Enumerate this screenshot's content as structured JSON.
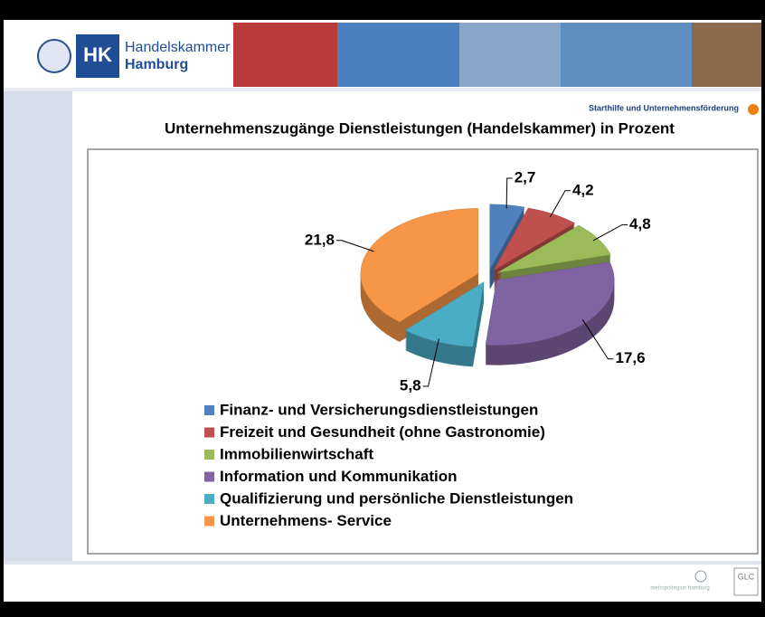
{
  "header": {
    "logo_short": "HK",
    "logo_line1": "Handelskammer",
    "logo_line2": "Hamburg",
    "section": "Starthilfe und Unternehmensförderung"
  },
  "chart_data": {
    "type": "pie",
    "title": "Unternehmenszugänge Dienstleistungen (Handelskammer) in Prozent",
    "categories": [
      "Finanz- und Versicherungsdienstleistungen",
      "Freizeit und Gesundheit (ohne Gastronomie)",
      "Immobilienwirtschaft",
      "Information und Kommunikation",
      "Qualifizierung und persönliche Dienstleistungen",
      "Unternehmens- Service"
    ],
    "values": [
      2.7,
      4.2,
      4.8,
      17.6,
      5.8,
      21.8
    ],
    "value_labels": [
      "2,7",
      "4,2",
      "4,8",
      "17,6",
      "5,8",
      "21,8"
    ],
    "colors": [
      "#4f81bd",
      "#c0504d",
      "#9bbb59",
      "#8064a2",
      "#4bacc6",
      "#f79646"
    ]
  },
  "footer": {
    "region": "metropolregion hamburg",
    "badge": "GLC"
  }
}
